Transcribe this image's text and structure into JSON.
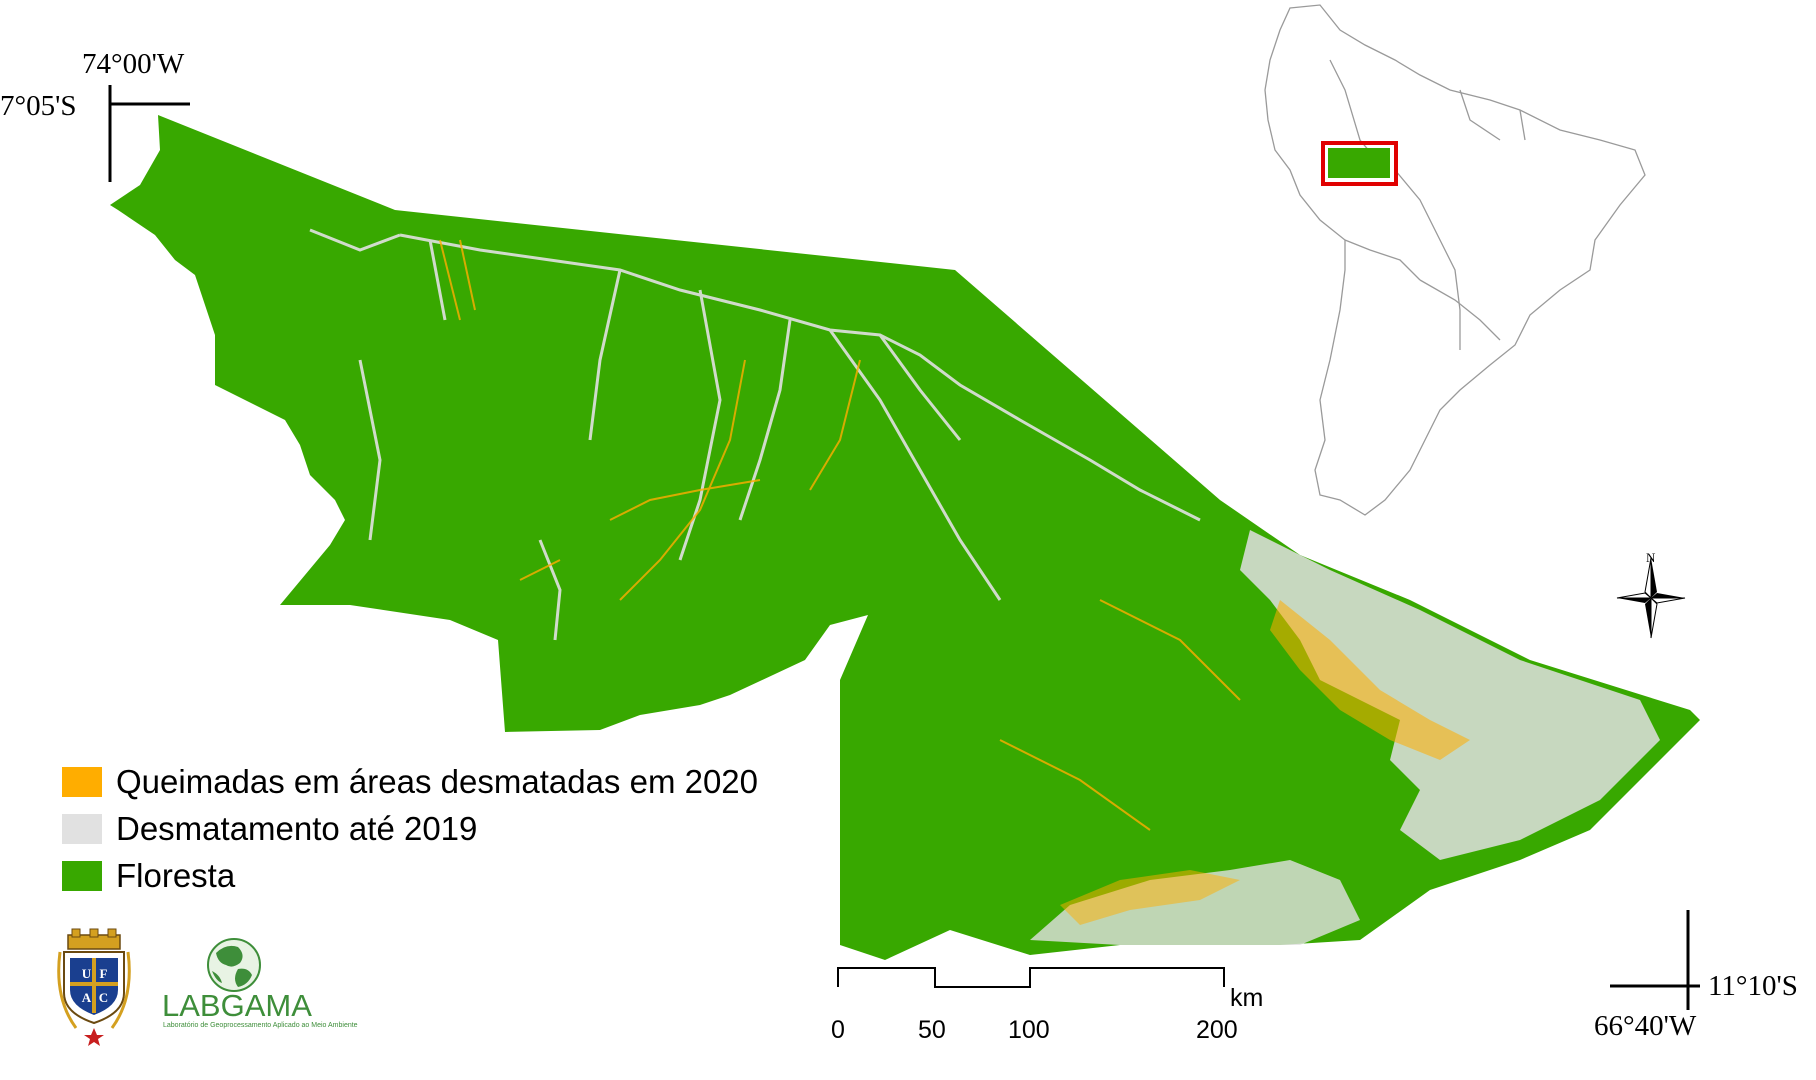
{
  "coords": {
    "top_left_lon": "74°00'W",
    "top_left_lat": "7°05'S",
    "bottom_right_lat": "11°10'S",
    "bottom_right_lon": "66°40'W"
  },
  "legend": [
    {
      "label": "Queimadas em áreas desmatadas em 2020",
      "color": "#ffad00"
    },
    {
      "label": "Desmatamento até 2019",
      "color": "#e1e1e1"
    },
    {
      "label": "Floresta",
      "color": "#38a800"
    }
  ],
  "scale_bar": {
    "ticks": [
      "0",
      "50",
      "100",
      "200"
    ],
    "unit": "km"
  },
  "north_arrow": {
    "letter": "N"
  },
  "logos": {
    "ufac_letters": [
      "U",
      "F",
      "A",
      "C"
    ],
    "labgama_name": "LABGAMA",
    "labgama_subtitle": "Laboratório de Geoprocessamento Aplicado ao Meio Ambiente"
  },
  "colors": {
    "forest": "#38a800",
    "deforestation": "#e1e1e1",
    "burned": "#ffad00",
    "inset_box": "#e00000"
  },
  "icons": [
    "north-arrow-icon",
    "ufac-crest-icon",
    "globe-icon"
  ]
}
